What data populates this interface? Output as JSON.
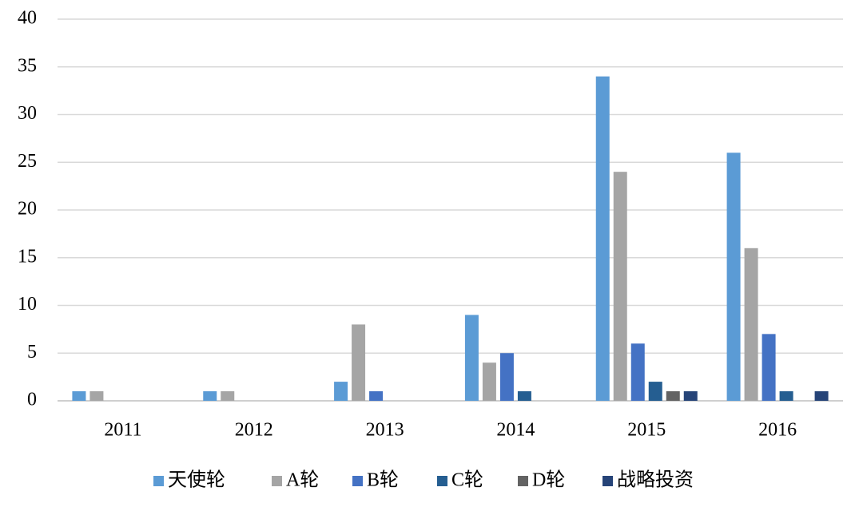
{
  "chart_data": {
    "type": "bar",
    "categories": [
      "2011",
      "2012",
      "2013",
      "2014",
      "2015",
      "2016"
    ],
    "series": [
      {
        "name": "天使轮",
        "color": "#5b9bd5",
        "values": [
          1,
          1,
          2,
          9,
          34,
          26
        ]
      },
      {
        "name": "A轮",
        "color": "#a5a5a5",
        "values": [
          1,
          1,
          8,
          4,
          24,
          16
        ]
      },
      {
        "name": "B轮",
        "color": "#4472c4",
        "values": [
          0,
          0,
          1,
          5,
          6,
          7
        ]
      },
      {
        "name": "C轮",
        "color": "#255e91",
        "values": [
          0,
          0,
          0,
          1,
          2,
          1
        ]
      },
      {
        "name": "D轮",
        "color": "#636363",
        "values": [
          0,
          0,
          0,
          0,
          1,
          0
        ]
      },
      {
        "name": "战略投资",
        "color": "#264478",
        "values": [
          0,
          0,
          0,
          0,
          1,
          1
        ]
      }
    ],
    "ylim": [
      0,
      40
    ],
    "yticks": [
      0,
      5,
      10,
      15,
      20,
      25,
      30,
      35,
      40
    ],
    "grid": true,
    "legend": "bottom"
  }
}
